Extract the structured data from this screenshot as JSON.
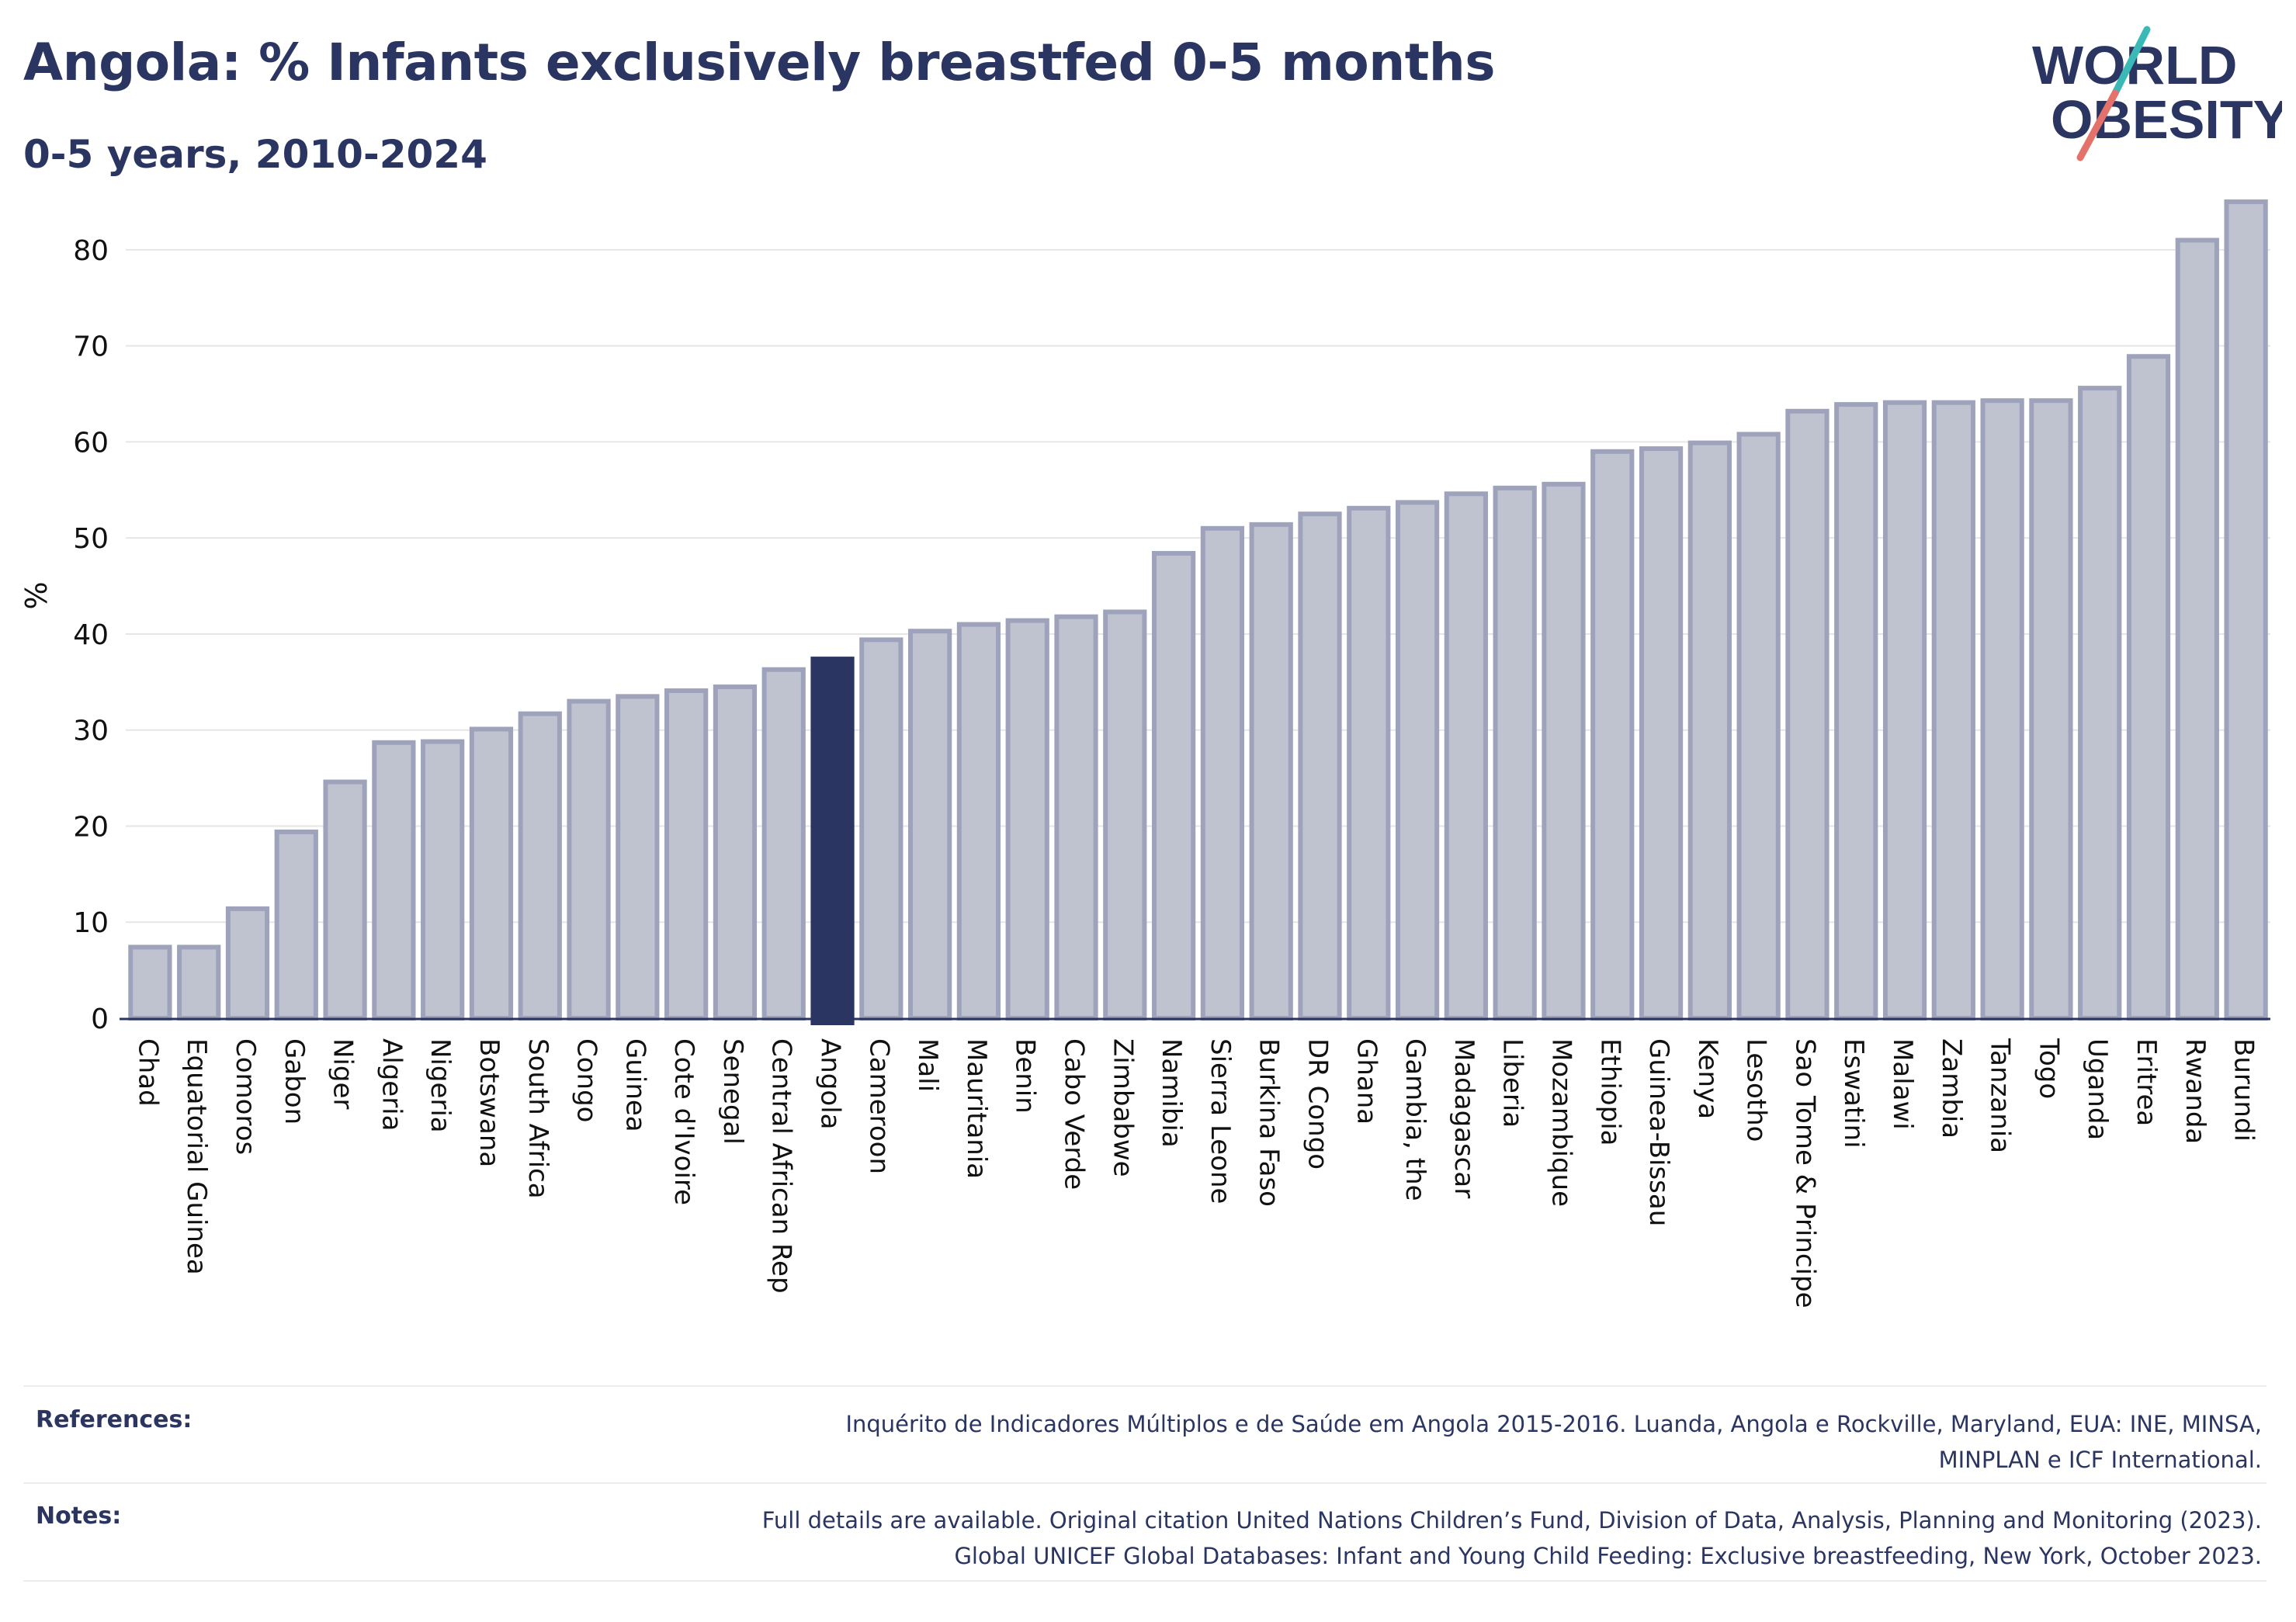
{
  "header": {
    "title": "Angola: % Infants exclusively breastfed 0-5 months",
    "subtitle": "0-5 years, 2010-2024"
  },
  "logo": {
    "line1": "WORLD",
    "line2": "OBESITY"
  },
  "colors": {
    "text": "#2b3561",
    "bar_fill": "#bfc3d0",
    "bar_stroke": "#9ea3bb",
    "highlight": "#2b3561",
    "grid": "#e6e6e6",
    "logo_teal": "#3ab9b7",
    "logo_coral": "#e5726a"
  },
  "chart_data": {
    "type": "bar",
    "title": "Angola: % Infants exclusively breastfed 0-5 months",
    "subtitle": "0-5 years, 2010-2024",
    "xlabel": "",
    "ylabel": "%",
    "ylim": [
      0,
      85
    ],
    "yticks": [
      0,
      10,
      20,
      30,
      40,
      50,
      60,
      70,
      80
    ],
    "grid": true,
    "highlight": "Angola",
    "categories": [
      "Chad",
      "Equatorial Guinea",
      "Comoros",
      "Gabon",
      "Niger",
      "Algeria",
      "Nigeria",
      "Botswana",
      "South Africa",
      "Congo",
      "Guinea",
      "Cote d'Ivoire",
      "Senegal",
      "Central African Rep",
      "Angola",
      "Cameroon",
      "Mali",
      "Mauritania",
      "Benin",
      "Cabo Verde",
      "Zimbabwe",
      "Namibia",
      "Sierra Leone",
      "Burkina Faso",
      "DR Congo",
      "Ghana",
      "Gambia, the",
      "Madagascar",
      "Liberia",
      "Mozambique",
      "Ethiopia",
      "Guinea-Bissau",
      "Kenya",
      "Lesotho",
      "Sao Tome & Principe",
      "Eswatini",
      "Malawi",
      "Zambia",
      "Tanzania",
      "Togo",
      "Uganda",
      "Eritrea",
      "Rwanda",
      "Burundi"
    ],
    "values": [
      7.4,
      7.4,
      11.4,
      19.4,
      24.6,
      28.7,
      28.8,
      30.1,
      31.7,
      33.0,
      33.5,
      34.1,
      34.5,
      36.3,
      37.4,
      39.4,
      40.3,
      41.0,
      41.4,
      41.8,
      42.3,
      48.4,
      51.0,
      51.4,
      52.5,
      53.1,
      53.7,
      54.6,
      55.2,
      55.6,
      59.0,
      59.3,
      59.9,
      60.8,
      63.2,
      63.9,
      64.1,
      64.1,
      64.3,
      64.3,
      65.6,
      68.9,
      81.0,
      85.0
    ]
  },
  "footer": {
    "references_label": "References:",
    "references_line1": "Inquérito de Indicadores Múltiplos e de Saúde em Angola 2015-2016. Luanda, Angola e Rockville, Maryland, EUA: INE, MINSA,",
    "references_line2": "MINPLAN e ICF International.",
    "notes_label": "Notes:",
    "notes_line1": "Full details are available. Original citation United Nations Children’s Fund, Division of Data, Analysis, Planning and Monitoring (2023).",
    "notes_line2": "Global UNICEF Global Databases: Infant and Young Child Feeding: Exclusive breastfeeding, New York, October 2023."
  }
}
